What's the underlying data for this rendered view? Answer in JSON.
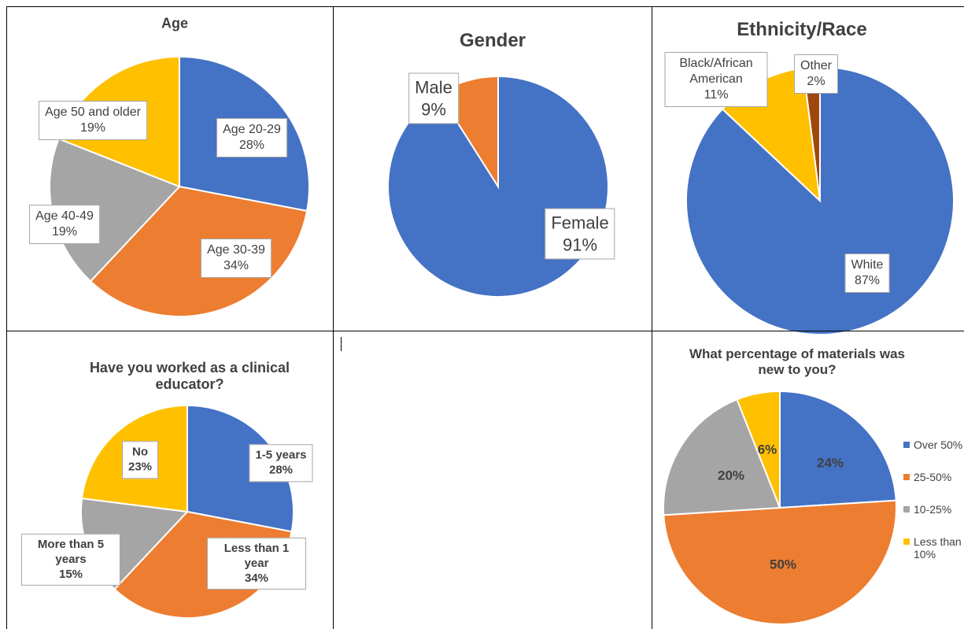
{
  "chart_data": [
    {
      "type": "pie",
      "title": "Age",
      "categories": [
        "Age 20-29",
        "Age 30-39",
        "Age 40-49",
        "Age 50 and older"
      ],
      "values": [
        28,
        34,
        19,
        19
      ],
      "value_labels": [
        "28%",
        "34%",
        "19%",
        "19%"
      ],
      "colors": [
        "#4472c4",
        "#ed7d31",
        "#a5a5a5",
        "#ffc000"
      ]
    },
    {
      "type": "pie",
      "title": "Gender",
      "categories": [
        "Female",
        "Male"
      ],
      "values": [
        91,
        9
      ],
      "value_labels": [
        "91%",
        "9%"
      ],
      "colors": [
        "#4472c4",
        "#ed7d31"
      ]
    },
    {
      "type": "pie",
      "title": "Ethnicity/Race",
      "categories": [
        "White",
        "Black/African American",
        "Other"
      ],
      "values": [
        87,
        11,
        2
      ],
      "value_labels": [
        "87%",
        "11%",
        "2%"
      ],
      "colors": [
        "#4472c4",
        "#ffc000",
        "#9e480e"
      ]
    },
    {
      "type": "pie",
      "title": "Have you worked as a clinical educator?",
      "categories": [
        "1-5 years",
        "Less than 1 year",
        "More than 5 years",
        "No"
      ],
      "values": [
        28,
        34,
        15,
        23
      ],
      "value_labels": [
        "28%",
        "34%",
        "15%",
        "23%"
      ],
      "colors": [
        "#4472c4",
        "#ed7d31",
        "#a5a5a5",
        "#ffc000"
      ]
    },
    {
      "type": "pie",
      "title": "What percentage of materials was new to you?",
      "categories": [
        "Over 50%",
        "25-50%",
        "10-25%",
        "Less than 10%"
      ],
      "values": [
        24,
        50,
        20,
        6
      ],
      "value_labels": [
        "24%",
        "50%",
        "20%",
        "6%"
      ],
      "colors": [
        "#4472c4",
        "#ed7d31",
        "#a5a5a5",
        "#ffc000"
      ],
      "legend": "right"
    }
  ]
}
